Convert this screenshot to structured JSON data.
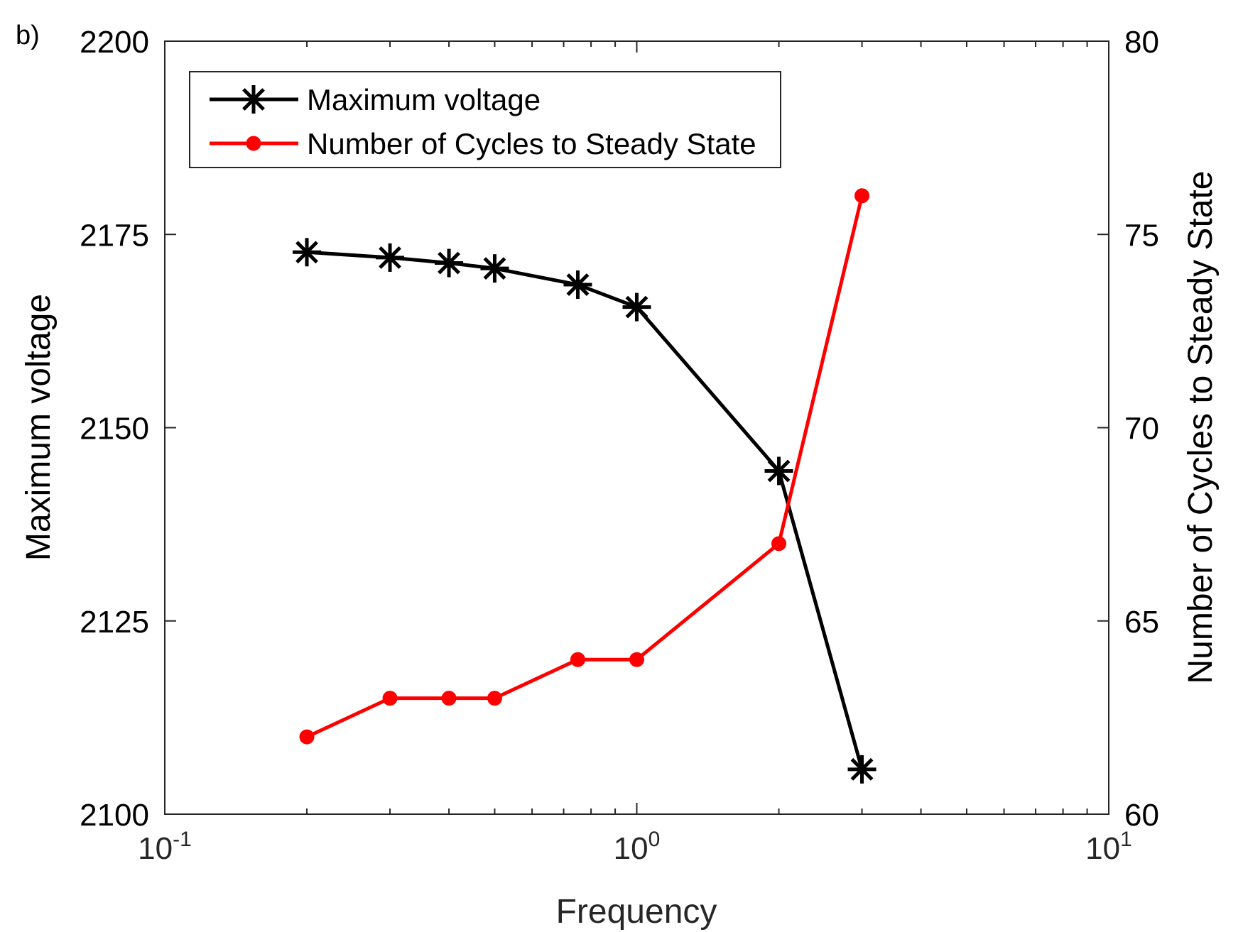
{
  "panel_label": "b)",
  "chart_data": {
    "type": "line",
    "xlabel": "Frequency",
    "x_scale": "log",
    "xlim": [
      0.1,
      10
    ],
    "x_ticks": [
      {
        "value": 0.1,
        "base": "10",
        "exp": "-1"
      },
      {
        "value": 1,
        "base": "10",
        "exp": "0"
      },
      {
        "value": 10,
        "base": "10",
        "exp": "1"
      }
    ],
    "y_left": {
      "label": "Maximum voltage",
      "ylim": [
        2100,
        2200
      ],
      "ticks": [
        2100,
        2125,
        2150,
        2175,
        2200
      ]
    },
    "y_right": {
      "label": "Number of Cycles to Steady State",
      "ylim": [
        60,
        80
      ],
      "ticks": [
        60,
        65,
        70,
        75,
        80
      ]
    },
    "grid": false,
    "legend_position": "top-left",
    "series": [
      {
        "name": "Maximum voltage",
        "axis": "left",
        "color": "#000000",
        "marker": "asterisk",
        "x": [
          0.2,
          0.3,
          0.4,
          0.5,
          0.75,
          1,
          2,
          3
        ],
        "values": [
          2172.7,
          2172.0,
          2171.3,
          2170.6,
          2168.5,
          2165.6,
          2144.4,
          2105.8
        ]
      },
      {
        "name": "Number of Cycles to Steady State",
        "axis": "right",
        "color": "#ff0000",
        "marker": "dot",
        "x": [
          0.2,
          0.3,
          0.4,
          0.5,
          0.75,
          1,
          2,
          3
        ],
        "values": [
          62,
          63,
          63,
          63,
          64,
          64,
          67,
          76
        ]
      }
    ]
  }
}
